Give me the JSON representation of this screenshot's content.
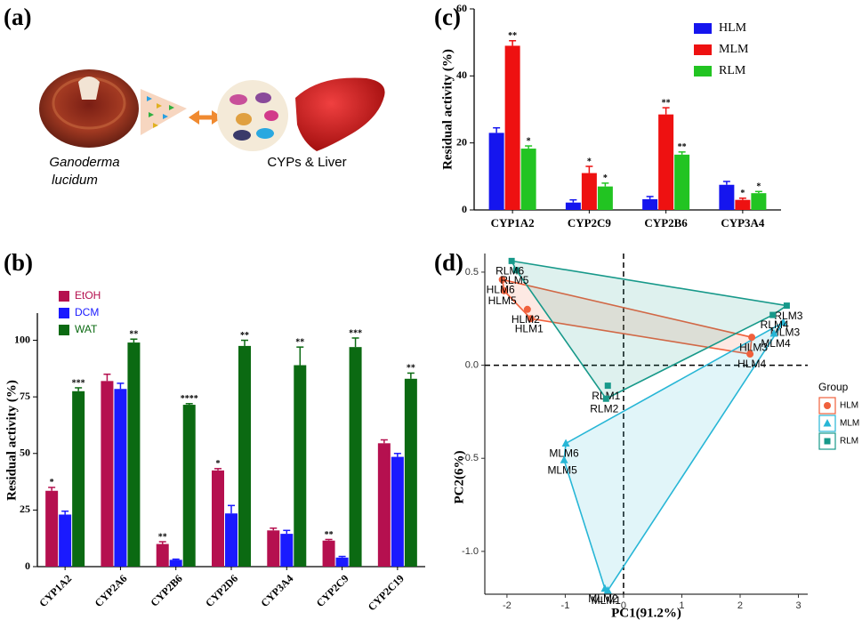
{
  "illustration": {
    "panel_label": "(a)",
    "caption_lines": [
      "Ganoderma",
      "lucidum"
    ],
    "target_label": "CYPs & Liver"
  },
  "chart_data": [
    {
      "type": "bar",
      "panel_label": "(b)",
      "y_label": "Residual activity (%)",
      "categories": [
        "CYP1A2",
        "CYP2A6",
        "CYP2B6",
        "CYP2D6",
        "CYP3A4",
        "CYP2C9",
        "CYP2C19"
      ],
      "ylim": [
        0,
        112
      ],
      "yticks": [
        0,
        25,
        50,
        75,
        100
      ],
      "legend_text_colored": true,
      "rotate_x_labels": true,
      "series": [
        {
          "name": "EtOH",
          "color": "#b5104f",
          "values": [
            33.5,
            82,
            10,
            42.5,
            16,
            11.5,
            54.5
          ],
          "errors": [
            1.5,
            3,
            1,
            0.8,
            1,
            0.5,
            1.5
          ],
          "significance": [
            "*",
            null,
            "**",
            "*",
            null,
            "**",
            null
          ]
        },
        {
          "name": "DCM",
          "color": "#1a1aff",
          "values": [
            23,
            78.5,
            3,
            23.5,
            14.5,
            4,
            48.5
          ],
          "errors": [
            1.5,
            2.5,
            0.3,
            3.5,
            1.5,
            0.5,
            1.5
          ],
          "significance": [
            null,
            null,
            null,
            null,
            null,
            null,
            null
          ]
        },
        {
          "name": "WAT",
          "color": "#0b6a12",
          "values": [
            77.5,
            99,
            71.5,
            97.5,
            89,
            97,
            83
          ],
          "errors": [
            1.5,
            1.5,
            0.5,
            2.5,
            8,
            4,
            2.5
          ],
          "significance": [
            "***",
            "**",
            "****",
            "**",
            "**",
            "***",
            "**"
          ]
        }
      ]
    },
    {
      "type": "bar",
      "panel_label": "(c)",
      "y_label": "Residual activity (%)",
      "categories": [
        "CYP1A2",
        "CYP2C9",
        "CYP2B6",
        "CYP3A4"
      ],
      "ylim": [
        0,
        60
      ],
      "yticks": [
        0,
        20,
        40,
        60
      ],
      "legend_text_colored": false,
      "rotate_x_labels": false,
      "series": [
        {
          "name": "HLM",
          "color": "#1515ee",
          "values": [
            23,
            2.2,
            3.2,
            7.5
          ],
          "errors": [
            1.5,
            0.8,
            0.8,
            1
          ],
          "significance": [
            null,
            null,
            null,
            null
          ]
        },
        {
          "name": "MLM",
          "color": "#ee1111",
          "values": [
            49,
            11,
            28.5,
            3
          ],
          "errors": [
            1.5,
            2,
            2,
            0.5
          ],
          "significance": [
            "**",
            "*",
            "**",
            "*"
          ]
        },
        {
          "name": "RLM",
          "color": "#22c422",
          "values": [
            18.3,
            7,
            16.5,
            5
          ],
          "errors": [
            0.8,
            1,
            0.8,
            0.5
          ],
          "significance": [
            "*",
            "*",
            "**",
            "*"
          ]
        }
      ]
    },
    {
      "type": "scatter",
      "panel_label": "(d)",
      "x_label": "PC1(91.2%)",
      "y_label": "PC2(6%)",
      "legend_title": "Group",
      "xlim": [
        -2.38,
        3.16
      ],
      "ylim": [
        -1.23,
        0.6
      ],
      "xticks": [
        -2,
        -1,
        0,
        1,
        2,
        3
      ],
      "yticks": [
        {
          "value": -1,
          "label": "-1.0"
        },
        -0.5,
        {
          "value": 0,
          "label": "0.0"
        },
        0.5
      ],
      "reference_lines": {
        "x": 0,
        "y": 0
      },
      "hull": true,
      "series": [
        {
          "name": "HLM",
          "color": "#f0603c",
          "marker": "circle",
          "labels": [
            "HLM1",
            "HLM2",
            "HLM3",
            "HLM4",
            "HLM5",
            "HLM6"
          ],
          "x": [
            -1.59,
            -1.65,
            2.2,
            2.17,
            -2.05,
            -2.08
          ],
          "values": [
            0.25,
            0.3,
            0.15,
            0.06,
            0.4,
            0.46
          ]
        },
        {
          "name": "MLM",
          "color": "#27b6d6",
          "marker": "triangle",
          "labels": [
            "MLM1",
            "MLM2",
            "MLM3",
            "MLM4",
            "MLM5",
            "MLM6"
          ],
          "x": [
            -0.27,
            -0.32,
            2.74,
            2.58,
            -1.02,
            -0.99
          ],
          "values": [
            -1.21,
            -1.2,
            0.23,
            0.17,
            -0.51,
            -0.42
          ]
        },
        {
          "name": "RLM",
          "color": "#17998a",
          "marker": "square",
          "labels": [
            "RLM1",
            "RLM2",
            "RLM3",
            "RLM4",
            "RLM5",
            "RLM6"
          ],
          "x": [
            -0.27,
            -0.3,
            2.8,
            2.56,
            -1.84,
            -1.92
          ],
          "values": [
            -0.11,
            -0.18,
            0.32,
            0.27,
            0.51,
            0.56
          ]
        }
      ]
    }
  ]
}
